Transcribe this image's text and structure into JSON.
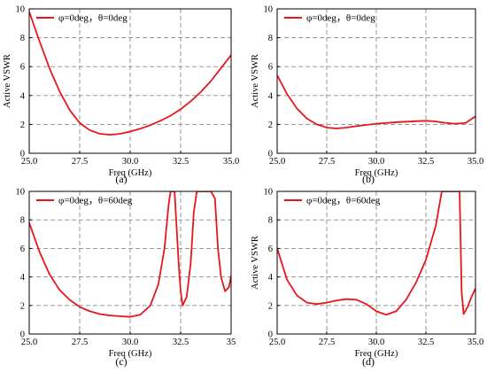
{
  "chart_data": [
    {
      "type": "line",
      "caption": "(a)",
      "xlabel": "Freq (GHz)",
      "ylabel": "Active VSWR",
      "xlim": [
        25,
        35
      ],
      "ylim": [
        0,
        10
      ],
      "xticks": [
        "25.0",
        "27.5",
        "30.0",
        "32.5",
        "35.0"
      ],
      "yticks": [
        "0",
        "2",
        "4",
        "6",
        "8",
        "10"
      ],
      "grid": true,
      "legend_position": "top-left",
      "series": [
        {
          "name": "φ=0deg，θ=0deg",
          "color": "#e8161c",
          "x": [
            25.0,
            25.5,
            26.0,
            26.5,
            27.0,
            27.5,
            28.0,
            28.5,
            29.0,
            29.5,
            30.0,
            30.5,
            31.0,
            31.5,
            32.0,
            32.5,
            33.0,
            33.5,
            34.0,
            34.5,
            35.0
          ],
          "y": [
            9.8,
            7.8,
            5.9,
            4.3,
            3.0,
            2.1,
            1.6,
            1.35,
            1.28,
            1.35,
            1.5,
            1.7,
            1.95,
            2.25,
            2.6,
            3.05,
            3.6,
            4.25,
            5.0,
            5.9,
            6.8
          ]
        }
      ]
    },
    {
      "type": "line",
      "caption": "(b)",
      "xlabel": "Freq (GHz)",
      "ylabel": "Active VSWR",
      "xlim": [
        25,
        35
      ],
      "ylim": [
        0,
        10
      ],
      "xticks": [
        "25.0",
        "27.5",
        "30.0",
        "32.5",
        "35.0"
      ],
      "yticks": [
        "0",
        "2",
        "4",
        "6",
        "8",
        "10"
      ],
      "grid": true,
      "legend_position": "top-left",
      "series": [
        {
          "name": "φ=0deg，θ=0deg",
          "color": "#e8161c",
          "x": [
            25.0,
            25.5,
            26.0,
            26.5,
            27.0,
            27.5,
            28.0,
            28.5,
            29.0,
            30.0,
            31.0,
            32.0,
            32.5,
            33.0,
            33.5,
            34.0,
            34.5,
            35.0
          ],
          "y": [
            5.4,
            4.1,
            3.1,
            2.4,
            2.0,
            1.78,
            1.72,
            1.78,
            1.88,
            2.05,
            2.15,
            2.22,
            2.25,
            2.2,
            2.1,
            2.05,
            2.1,
            2.55
          ]
        }
      ]
    },
    {
      "type": "line",
      "caption": "(c)",
      "xlabel": "Freq (GHz)",
      "ylabel": "",
      "xlim": [
        25,
        35
      ],
      "ylim": [
        0,
        10
      ],
      "xticks": [
        "25.0",
        "27.5",
        "30.0",
        "32.5",
        "35"
      ],
      "yticks": [
        "0",
        "2",
        "4",
        "6",
        "8",
        "10"
      ],
      "grid": true,
      "legend_position": "top-left",
      "series": [
        {
          "name": "φ=0deg，θ=60deg",
          "color": "#e8161c",
          "x": [
            25.0,
            25.5,
            26.0,
            26.5,
            27.0,
            27.5,
            28.0,
            28.5,
            29.0,
            29.5,
            30.0,
            30.5,
            31.0,
            31.4,
            31.7,
            31.9,
            32.0,
            32.2,
            32.4,
            32.5,
            32.6,
            32.8,
            33.0,
            33.15,
            33.3,
            33.5,
            33.7,
            33.85,
            34.0,
            34.2,
            34.35,
            34.5,
            34.7,
            34.9,
            35.0
          ],
          "y": [
            7.8,
            5.8,
            4.2,
            3.1,
            2.4,
            1.9,
            1.6,
            1.4,
            1.3,
            1.25,
            1.2,
            1.35,
            2.0,
            3.5,
            6.0,
            9.0,
            10.0,
            10.0,
            5.0,
            3.0,
            2.0,
            2.6,
            5.0,
            8.5,
            10.0,
            10.0,
            10.0,
            10.0,
            10.0,
            9.5,
            6.0,
            4.0,
            3.0,
            3.3,
            4.1
          ]
        }
      ]
    },
    {
      "type": "line",
      "caption": "(d)",
      "xlabel": "Freq (GHz)",
      "ylabel": "Active VSWR",
      "xlim": [
        25,
        35
      ],
      "ylim": [
        0,
        10
      ],
      "xticks": [
        "25.0",
        "27.5",
        "30.0",
        "32.5",
        "35.0"
      ],
      "yticks": [
        "0",
        "2",
        "4",
        "6",
        "8",
        "10"
      ],
      "grid": true,
      "legend_position": "top-left",
      "series": [
        {
          "name": "φ=0deg，θ=60deg",
          "color": "#e8161c",
          "x": [
            25.0,
            25.5,
            26.0,
            26.5,
            27.0,
            27.5,
            28.0,
            28.5,
            29.0,
            29.5,
            30.0,
            30.5,
            31.0,
            31.5,
            32.0,
            32.5,
            33.0,
            33.3,
            33.5,
            34.0,
            34.2,
            34.3,
            34.4,
            34.6,
            34.8,
            35.0
          ],
          "y": [
            6.0,
            3.8,
            2.7,
            2.2,
            2.1,
            2.2,
            2.35,
            2.45,
            2.4,
            2.1,
            1.6,
            1.35,
            1.6,
            2.4,
            3.6,
            5.2,
            7.6,
            10.0,
            10.0,
            10.0,
            10.0,
            3.0,
            1.4,
            1.9,
            2.6,
            3.2
          ]
        }
      ]
    }
  ]
}
